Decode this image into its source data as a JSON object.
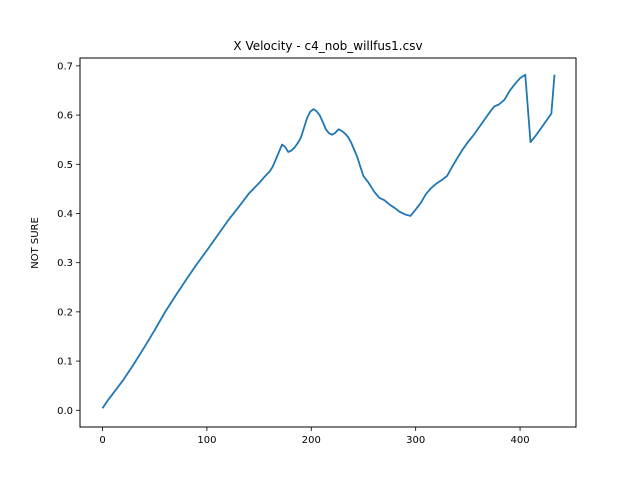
{
  "chart_data": {
    "type": "line",
    "title": "X Velocity - c4_nob_willfus1.csv",
    "xlabel": "",
    "ylabel": "NOT SURE",
    "xlim": [
      -21.6,
      453.6
    ],
    "ylim": [
      -0.034,
      0.716
    ],
    "x_ticks": [
      0,
      100,
      200,
      300,
      400
    ],
    "x_tick_labels": [
      "0",
      "100",
      "200",
      "300",
      "400"
    ],
    "y_ticks": [
      0.0,
      0.1,
      0.2,
      0.3,
      0.4,
      0.5,
      0.6,
      0.7
    ],
    "y_tick_labels": [
      "0.0",
      "0.1",
      "0.2",
      "0.3",
      "0.4",
      "0.5",
      "0.6",
      "0.7"
    ],
    "grid": false,
    "color": "#1f77b4",
    "series": [
      {
        "x": [
          0,
          5,
          10,
          20,
          30,
          40,
          50,
          60,
          70,
          80,
          90,
          100,
          110,
          120,
          130,
          140,
          150,
          155,
          160,
          163,
          166,
          169,
          172,
          175,
          178,
          181,
          184,
          187,
          190,
          193,
          196,
          199,
          202,
          205,
          208,
          211,
          214,
          217,
          220,
          223,
          226,
          229,
          232,
          235,
          238,
          241,
          244,
          247,
          250,
          255,
          260,
          265,
          270,
          275,
          280,
          285,
          290,
          295,
          300,
          305,
          310,
          315,
          320,
          325,
          330,
          335,
          340,
          345,
          350,
          355,
          360,
          365,
          370,
          375,
          380,
          385,
          390,
          395,
          400,
          405,
          410,
          415,
          420,
          425,
          430,
          433
        ],
        "y": [
          0.004,
          0.02,
          0.034,
          0.062,
          0.094,
          0.128,
          0.163,
          0.2,
          0.233,
          0.265,
          0.296,
          0.325,
          0.355,
          0.385,
          0.412,
          0.44,
          0.462,
          0.474,
          0.485,
          0.495,
          0.51,
          0.525,
          0.54,
          0.535,
          0.525,
          0.528,
          0.534,
          0.543,
          0.554,
          0.574,
          0.594,
          0.607,
          0.612,
          0.608,
          0.6,
          0.586,
          0.571,
          0.563,
          0.56,
          0.564,
          0.571,
          0.568,
          0.563,
          0.556,
          0.545,
          0.53,
          0.515,
          0.495,
          0.476,
          0.462,
          0.445,
          0.432,
          0.427,
          0.418,
          0.411,
          0.403,
          0.398,
          0.395,
          0.408,
          0.422,
          0.44,
          0.452,
          0.461,
          0.468,
          0.476,
          0.495,
          0.513,
          0.53,
          0.545,
          0.558,
          0.573,
          0.588,
          0.603,
          0.617,
          0.622,
          0.631,
          0.649,
          0.663,
          0.675,
          0.682,
          0.545,
          0.558,
          0.573,
          0.588,
          0.603,
          0.682
        ]
      }
    ]
  }
}
